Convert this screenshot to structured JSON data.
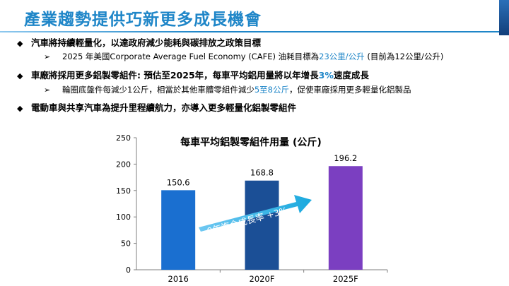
{
  "slide": {
    "title": "產業趨勢提供巧新更多成長機會"
  },
  "bullets": [
    {
      "text": "汽車將持續輕量化，以達政府減少能耗與碳排放之政策目標",
      "sub": {
        "before": "2025 年美國Corporate Average Fuel Economy (CAFE) 油耗目標為",
        "highlight": "23公里/公升",
        "after": " (目前為12公里/公升)"
      }
    },
    {
      "before": "車廠將採用更多鋁製零組件: 預估至2025年，每車平均鋁用量將以年增長",
      "highlight": "3%",
      "after": "速度成長",
      "sub": {
        "before": "輪圈底盤件每減少1公斤，相當於其他車體零組件減少",
        "highlight": "5至8公斤",
        "after": "，促使車廠採用更多輕量化鋁製品"
      }
    },
    {
      "text": "電動車與共享汽車為提升里程續航力，亦導入更多輕量化鋁製零組件"
    }
  ],
  "chart_data": {
    "type": "bar",
    "title": "每車平均鋁製零組件用量 (公斤)",
    "categories": [
      "2016",
      "2020F",
      "2025F"
    ],
    "values": [
      150.6,
      168.8,
      196.2
    ],
    "value_labels": [
      "150.6",
      "168.8",
      "196.2"
    ],
    "bar_colors": [
      "#1a6fd0",
      "#1b4f96",
      "#7b3fc1"
    ],
    "ylim": [
      0,
      250
    ],
    "yticks": [
      0,
      50,
      100,
      150,
      200,
      250
    ],
    "grid": false,
    "annotation": "9年複合成長率 +3%"
  }
}
